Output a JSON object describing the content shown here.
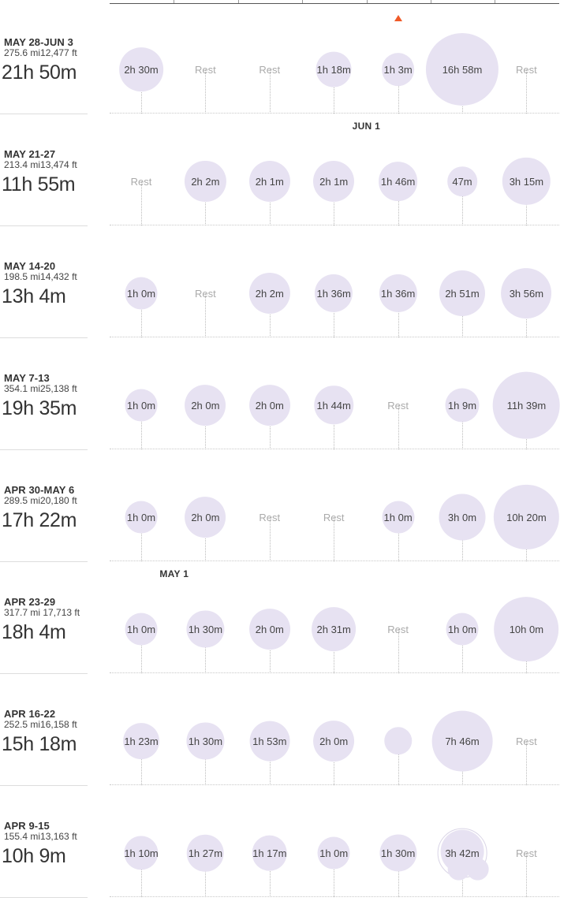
{
  "markers": [
    {
      "label": "JUN 1",
      "week_index": 0,
      "day_index": 4
    },
    {
      "label": "MAY 1",
      "week_index": 4,
      "day_index": 1
    }
  ],
  "colors": {
    "bubble": "#e7e2f2",
    "today_marker": "#f05a28",
    "rest_text": "#aaaaaa"
  },
  "weeks": [
    {
      "range": "MAY 28-JUN 3",
      "stats": "275.6 mi12,477 ft",
      "total": "21h 50m",
      "days": [
        {
          "label": "2h 30m",
          "minutes": 150
        },
        {
          "label": "Rest",
          "minutes": 0
        },
        {
          "label": "Rest",
          "minutes": 0
        },
        {
          "label": "1h 18m",
          "minutes": 78
        },
        {
          "label": "1h 3m",
          "minutes": 63
        },
        {
          "label": "16h 58m",
          "minutes": 1018
        },
        {
          "label": "Rest",
          "minutes": 0
        }
      ]
    },
    {
      "range": "MAY 21-27",
      "stats": "213.4 mi13,474 ft",
      "total": "11h 55m",
      "days": [
        {
          "label": "Rest",
          "minutes": 0
        },
        {
          "label": "2h 2m",
          "minutes": 122
        },
        {
          "label": "2h 1m",
          "minutes": 121
        },
        {
          "label": "2h 1m",
          "minutes": 121
        },
        {
          "label": "1h 46m",
          "minutes": 106
        },
        {
          "label": "47m",
          "minutes": 47
        },
        {
          "label": "3h 15m",
          "minutes": 195
        }
      ]
    },
    {
      "range": "MAY 14-20",
      "stats": "198.5 mi14,432 ft",
      "total": "13h 4m",
      "days": [
        {
          "label": "1h 0m",
          "minutes": 60
        },
        {
          "label": "Rest",
          "minutes": 0
        },
        {
          "label": "2h 2m",
          "minutes": 122
        },
        {
          "label": "1h 36m",
          "minutes": 96
        },
        {
          "label": "1h 36m",
          "minutes": 96
        },
        {
          "label": "2h 51m",
          "minutes": 171
        },
        {
          "label": "3h 56m",
          "minutes": 236
        }
      ]
    },
    {
      "range": "MAY 7-13",
      "stats": "354.1 mi25,138 ft",
      "total": "19h 35m",
      "days": [
        {
          "label": "1h 0m",
          "minutes": 60
        },
        {
          "label": "2h 0m",
          "minutes": 120
        },
        {
          "label": "2h 0m",
          "minutes": 120
        },
        {
          "label": "1h 44m",
          "minutes": 104
        },
        {
          "label": "Rest",
          "minutes": 0
        },
        {
          "label": "1h 9m",
          "minutes": 69
        },
        {
          "label": "11h 39m",
          "minutes": 699
        }
      ]
    },
    {
      "range": "APR 30-MAY 6",
      "stats": "289.5 mi20,180 ft",
      "total": "17h 22m",
      "days": [
        {
          "label": "1h 0m",
          "minutes": 60
        },
        {
          "label": "2h 0m",
          "minutes": 120
        },
        {
          "label": "Rest",
          "minutes": 0
        },
        {
          "label": "Rest",
          "minutes": 0
        },
        {
          "label": "1h 0m",
          "minutes": 60
        },
        {
          "label": "3h 0m",
          "minutes": 180
        },
        {
          "label": "10h 20m",
          "minutes": 620
        }
      ]
    },
    {
      "range": "APR 23-29",
      "stats": "317.7 mi 17,713 ft",
      "total": "18h 4m",
      "days": [
        {
          "label": "1h 0m",
          "minutes": 60
        },
        {
          "label": "1h 30m",
          "minutes": 90
        },
        {
          "label": "2h 0m",
          "minutes": 120
        },
        {
          "label": "2h 31m",
          "minutes": 151
        },
        {
          "label": "Rest",
          "minutes": 0
        },
        {
          "label": "1h 0m",
          "minutes": 60
        },
        {
          "label": "10h 0m",
          "minutes": 600
        }
      ]
    },
    {
      "range": "APR 16-22",
      "stats": "252.5 mi16,158 ft",
      "total": "15h 18m",
      "days": [
        {
          "label": "1h 23m",
          "minutes": 83
        },
        {
          "label": "1h 30m",
          "minutes": 90
        },
        {
          "label": "1h 53m",
          "minutes": 113
        },
        {
          "label": "2h 0m",
          "minutes": 120
        },
        {
          "label": "",
          "minutes": 40
        },
        {
          "label": "7h 46m",
          "minutes": 466
        },
        {
          "label": "Rest",
          "minutes": 0
        }
      ]
    },
    {
      "range": "APR 9-15",
      "stats": "155.4 mi13,163 ft",
      "total": "10h 9m",
      "days": [
        {
          "label": "1h 10m",
          "minutes": 70
        },
        {
          "label": "1h 27m",
          "minutes": 87
        },
        {
          "label": "1h 17m",
          "minutes": 77
        },
        {
          "label": "1h 0m",
          "minutes": 60
        },
        {
          "label": "1h 30m",
          "minutes": 90
        },
        {
          "label": "3h 42m",
          "minutes": 222,
          "multi": true
        },
        {
          "label": "Rest",
          "minutes": 0
        }
      ]
    }
  ]
}
